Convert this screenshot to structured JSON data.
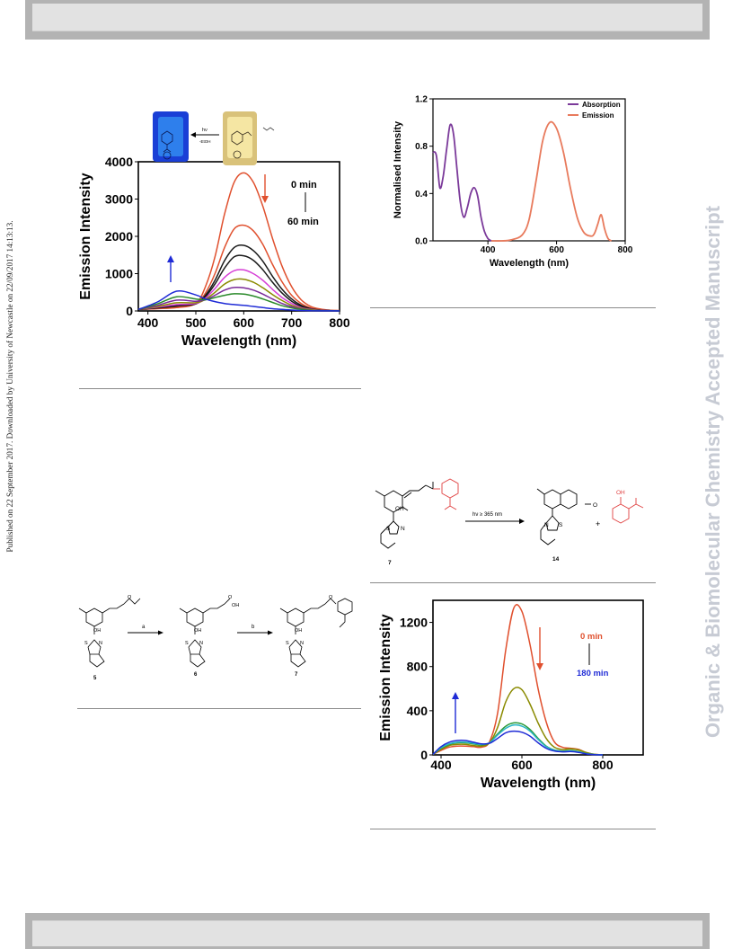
{
  "side_note": "Published on 22 September 2017. Downloaded by University of Newcastle on 22/09/2017 14:13:13.",
  "watermark": "Organic & Biomolecular Chemistry Accepted Manuscript",
  "figure_left": {
    "scheme_labels": {
      "hv": "hν",
      "byproduct": "-EtOH"
    },
    "annotation_start": "0 min",
    "annotation_end": "60 min",
    "colors": {
      "arrow_down": "#e0502e",
      "arrow_up": "#1f2bd6"
    }
  },
  "figure_right_top": {
    "legend_absorption_color": "#7b3a9a",
    "legend_emission_color": "#e87a5c"
  },
  "scheme_photolysis": {
    "compound_start": "7",
    "compound_product": "14",
    "conditions": "hν ≥ 365 nm",
    "plus": "+",
    "oh_label": "OH",
    "n_label": "N",
    "s_label": "S",
    "colors": {
      "highlight": "#e04040"
    }
  },
  "scheme_synthesis": {
    "step_a": "a",
    "step_b": "b",
    "compounds": [
      "5",
      "6",
      "7"
    ],
    "oh_label": "OH",
    "n_label": "N",
    "s_label": "S"
  },
  "figure_right_bottom": {
    "annotation_start": "0 min",
    "annotation_end": "180 min",
    "colors": {
      "arrow_down": "#e0502e",
      "arrow_up": "#1f2bd6"
    }
  },
  "chart_data": [
    {
      "type": "line",
      "xlabel": "Wavelength (nm)",
      "ylabel": "Emission Intensity",
      "xlim": [
        380,
        800
      ],
      "ylim": [
        0,
        4000
      ],
      "xticks": [
        400,
        500,
        600,
        700,
        800
      ],
      "yticks": [
        0,
        1000,
        2000,
        3000,
        4000
      ],
      "grid": false,
      "series": [
        {
          "color": "#e0502e",
          "x": [
            380,
            420,
            460,
            500,
            520,
            540,
            560,
            580,
            600,
            620,
            640,
            660,
            680,
            700,
            720,
            740,
            760,
            780,
            800
          ],
          "y": [
            40,
            60,
            90,
            200,
            650,
            1450,
            2600,
            3450,
            3700,
            3450,
            2800,
            1950,
            1200,
            650,
            300,
            120,
            50,
            20,
            10
          ]
        },
        {
          "color": "#e0502e",
          "x": [
            380,
            420,
            460,
            500,
            520,
            540,
            560,
            580,
            600,
            620,
            640,
            660,
            680,
            700,
            720,
            740,
            760,
            780,
            800
          ],
          "y": [
            40,
            70,
            110,
            190,
            480,
            1000,
            1700,
            2200,
            2300,
            2150,
            1780,
            1250,
            780,
            420,
            200,
            80,
            30,
            15,
            10
          ]
        },
        {
          "color": "#1a1a1a",
          "x": [
            380,
            420,
            460,
            500,
            520,
            540,
            560,
            580,
            600,
            620,
            640,
            660,
            680,
            700,
            720,
            740,
            760,
            780,
            800
          ],
          "y": [
            40,
            80,
            130,
            190,
            420,
            820,
            1350,
            1700,
            1760,
            1620,
            1330,
            930,
            580,
            320,
            150,
            60,
            25,
            10,
            5
          ]
        },
        {
          "color": "#1a1a1a",
          "x": [
            380,
            420,
            460,
            500,
            520,
            540,
            560,
            580,
            600,
            620,
            640,
            660,
            680,
            700,
            720,
            740,
            760,
            780,
            800
          ],
          "y": [
            40,
            90,
            150,
            190,
            380,
            720,
            1150,
            1450,
            1480,
            1360,
            1100,
            770,
            480,
            260,
            120,
            50,
            20,
            10,
            5
          ]
        },
        {
          "color": "#d63fd6",
          "x": [
            380,
            420,
            460,
            500,
            520,
            540,
            560,
            580,
            600,
            620,
            640,
            660,
            680,
            700,
            720,
            740,
            760,
            780,
            800
          ],
          "y": [
            40,
            100,
            170,
            200,
            340,
            600,
            900,
            1080,
            1100,
            1000,
            820,
            580,
            360,
            200,
            90,
            40,
            15,
            8,
            5
          ]
        },
        {
          "color": "#8a8a00",
          "x": [
            380,
            420,
            460,
            500,
            520,
            540,
            560,
            580,
            600,
            620,
            640,
            660,
            680,
            700,
            720,
            740,
            760,
            780,
            800
          ],
          "y": [
            40,
            120,
            220,
            220,
            310,
            500,
            720,
            840,
            850,
            770,
            620,
            440,
            280,
            150,
            70,
            30,
            12,
            6,
            4
          ]
        },
        {
          "color": "#7a2a9a",
          "x": [
            380,
            420,
            460,
            500,
            520,
            540,
            560,
            580,
            600,
            620,
            640,
            660,
            680,
            700,
            720,
            740,
            760,
            780,
            800
          ],
          "y": [
            40,
            150,
            290,
            260,
            300,
            420,
            560,
            630,
            620,
            560,
            450,
            320,
            200,
            110,
            50,
            20,
            10,
            5,
            3
          ]
        },
        {
          "color": "#2a8a2a",
          "x": [
            380,
            420,
            460,
            500,
            520,
            540,
            560,
            580,
            600,
            620,
            640,
            660,
            680,
            700,
            720,
            740,
            760,
            780,
            800
          ],
          "y": [
            40,
            190,
            380,
            320,
            300,
            360,
            420,
            460,
            450,
            400,
            320,
            230,
            140,
            80,
            40,
            15,
            8,
            4,
            2
          ]
        },
        {
          "color": "#1f2bd6",
          "x": [
            380,
            420,
            460,
            500,
            520,
            540,
            560,
            580,
            600,
            620,
            640,
            660,
            680,
            700,
            720,
            740,
            760,
            780,
            800
          ],
          "y": [
            40,
            240,
            530,
            430,
            320,
            250,
            200,
            170,
            150,
            120,
            90,
            60,
            40,
            25,
            12,
            6,
            3,
            2,
            1
          ]
        }
      ]
    },
    {
      "type": "line",
      "xlabel": "Wavelength (nm)",
      "ylabel": "Normalised Intensity",
      "xlim": [
        240,
        800
      ],
      "ylim": [
        0,
        1.2
      ],
      "xticks": [
        400,
        600,
        800
      ],
      "yticks": [
        0.0,
        0.4,
        0.8,
        1.2
      ],
      "legend": "top-right",
      "grid": false,
      "series": [
        {
          "name": "Absorption",
          "color": "#7b3a9a",
          "x": [
            240,
            250,
            260,
            270,
            280,
            290,
            300,
            310,
            320,
            330,
            340,
            350,
            360,
            370,
            380,
            390,
            400,
            410
          ],
          "y": [
            0.75,
            0.72,
            0.45,
            0.55,
            0.78,
            0.98,
            0.9,
            0.6,
            0.32,
            0.2,
            0.28,
            0.4,
            0.45,
            0.38,
            0.2,
            0.08,
            0.02,
            0.0
          ]
        },
        {
          "name": "Emission",
          "color": "#e87a5c",
          "x": [
            410,
            440,
            470,
            500,
            520,
            540,
            560,
            580,
            600,
            620,
            640,
            660,
            680,
            700,
            710,
            720,
            730,
            740,
            750,
            760
          ],
          "y": [
            0.0,
            0.0,
            0.01,
            0.05,
            0.18,
            0.5,
            0.85,
            1.0,
            0.95,
            0.75,
            0.45,
            0.2,
            0.07,
            0.04,
            0.06,
            0.14,
            0.22,
            0.1,
            0.02,
            0.0
          ]
        }
      ]
    },
    {
      "type": "line",
      "xlabel": "Wavelength (nm)",
      "ylabel": "Emission Intensity",
      "xlim": [
        380,
        900
      ],
      "ylim": [
        0,
        1400
      ],
      "xticks": [
        400,
        600,
        800
      ],
      "yticks": [
        0,
        400,
        800,
        1200
      ],
      "grid": false,
      "series": [
        {
          "color": "#e0502e",
          "x": [
            380,
            400,
            420,
            440,
            460,
            480,
            500,
            520,
            540,
            560,
            580,
            600,
            620,
            640,
            660,
            680,
            700,
            720,
            740,
            760,
            780,
            800
          ],
          "y": [
            5,
            40,
            70,
            80,
            80,
            75,
            70,
            120,
            380,
            950,
            1330,
            1300,
            1000,
            600,
            300,
            120,
            70,
            60,
            50,
            20,
            5,
            0
          ]
        },
        {
          "color": "#8a8a00",
          "x": [
            380,
            400,
            420,
            440,
            460,
            480,
            500,
            520,
            540,
            560,
            580,
            600,
            620,
            640,
            660,
            680,
            700,
            720,
            740,
            760,
            780,
            800
          ],
          "y": [
            5,
            50,
            85,
            95,
            95,
            85,
            80,
            110,
            250,
            480,
            600,
            590,
            460,
            290,
            150,
            70,
            50,
            55,
            45,
            20,
            5,
            0
          ]
        },
        {
          "color": "#2a9a3a",
          "x": [
            380,
            400,
            420,
            440,
            460,
            480,
            500,
            520,
            540,
            560,
            580,
            600,
            620,
            640,
            660,
            680,
            700,
            720,
            740,
            760,
            780,
            800
          ],
          "y": [
            5,
            60,
            95,
            110,
            110,
            100,
            90,
            110,
            190,
            260,
            290,
            280,
            230,
            150,
            80,
            45,
            35,
            40,
            30,
            12,
            3,
            0
          ]
        },
        {
          "color": "#29b6c6",
          "x": [
            380,
            400,
            420,
            440,
            460,
            480,
            500,
            520,
            540,
            560,
            580,
            600,
            620,
            640,
            660,
            680,
            700,
            720,
            740,
            760,
            780,
            800
          ],
          "y": [
            5,
            65,
            100,
            115,
            115,
            105,
            95,
            110,
            180,
            240,
            270,
            260,
            215,
            140,
            75,
            42,
            32,
            36,
            28,
            10,
            3,
            0
          ]
        },
        {
          "color": "#1f2bd6",
          "x": [
            380,
            400,
            420,
            440,
            460,
            480,
            500,
            520,
            540,
            560,
            580,
            600,
            620,
            640,
            660,
            680,
            700,
            720,
            740,
            760,
            780,
            800
          ],
          "y": [
            5,
            75,
            115,
            130,
            130,
            115,
            100,
            105,
            150,
            200,
            215,
            205,
            170,
            110,
            60,
            35,
            28,
            30,
            22,
            8,
            2,
            0
          ]
        }
      ]
    }
  ]
}
